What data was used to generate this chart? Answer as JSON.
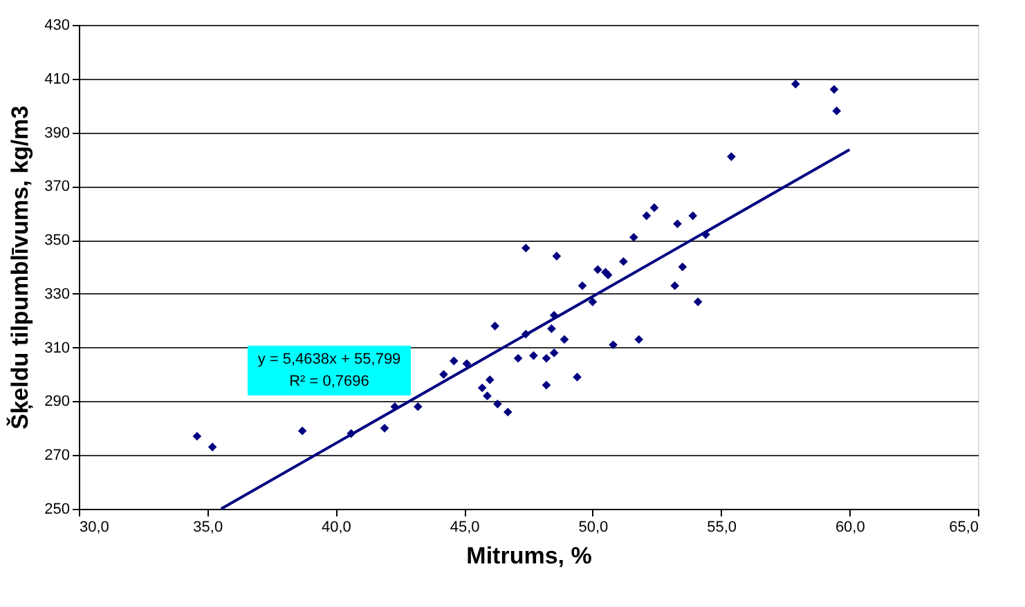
{
  "chart_data": {
    "type": "scatter",
    "xlabel": "Mitrums, %",
    "ylabel": "Šķeldu tilpumblīvums, kg/m3",
    "xlim": [
      30,
      65
    ],
    "ylim": [
      250,
      430
    ],
    "xticks": [
      {
        "value": 30,
        "label": "30,0"
      },
      {
        "value": 35,
        "label": "35,0"
      },
      {
        "value": 40,
        "label": "40,0"
      },
      {
        "value": 45,
        "label": "45,0"
      },
      {
        "value": 50,
        "label": "50,0"
      },
      {
        "value": 55,
        "label": "55,0"
      },
      {
        "value": 60,
        "label": "60,0"
      },
      {
        "value": 65,
        "label": "65,0"
      }
    ],
    "yticks": [
      250,
      270,
      290,
      310,
      330,
      350,
      370,
      390,
      410,
      430
    ],
    "grid": "y",
    "annotations": [
      "y = 5,4638x + 55,799",
      "R² = 0,7696"
    ],
    "series": [
      {
        "marker": "diamond",
        "color": "#000080",
        "x": [
          34.6,
          35.2,
          38.7,
          40.6,
          41.9,
          42.3,
          43.2,
          44.2,
          44.6,
          45.1,
          45.7,
          45.9,
          46.0,
          46.2,
          46.3,
          46.7,
          47.1,
          47.4,
          47.4,
          47.7,
          48.2,
          48.2,
          48.4,
          48.5,
          48.5,
          48.6,
          48.9,
          49.4,
          49.6,
          50.0,
          50.2,
          50.5,
          50.6,
          50.8,
          51.2,
          51.6,
          51.8,
          52.1,
          52.4,
          53.2,
          53.3,
          53.5,
          53.9,
          54.1,
          54.4,
          55.4,
          57.9,
          59.4,
          59.5
        ],
        "values": [
          277,
          273,
          279,
          278,
          280,
          288,
          288,
          300,
          305,
          304,
          295,
          292,
          298,
          318,
          289,
          286,
          306,
          347,
          315,
          307,
          306,
          296,
          317,
          322,
          308,
          344,
          313,
          299,
          333,
          327,
          339,
          338,
          337,
          311,
          342,
          351,
          313,
          359,
          362,
          333,
          356,
          340,
          359,
          327,
          352,
          381,
          408,
          406,
          398
        ]
      },
      {
        "type": "line",
        "color": "#000080",
        "line_style": "solid",
        "x": [
          35.54,
          60
        ],
        "values": [
          250,
          383.6
        ]
      }
    ]
  }
}
